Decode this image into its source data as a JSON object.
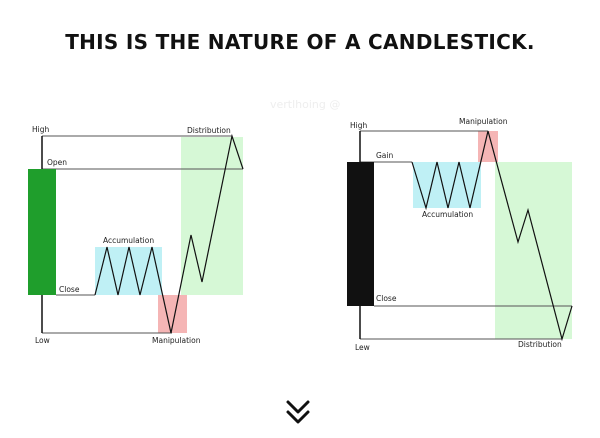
{
  "title": "THIS IS THE NATURE OF A CANDLESTICK.",
  "watermark": "vertlhoing @",
  "colors": {
    "bullish_candle": "#1f9e2c",
    "bearish_candle": "#111111",
    "accumulation": "#bff0f5",
    "manipulation": "#f5b5b5",
    "distribution": "#d6f8d6"
  },
  "left_diagram": {
    "high": "High",
    "open": "Open",
    "close": "Close",
    "low": "Low",
    "accumulation": "Accumulation",
    "manipulation": "Manipulation",
    "distribution": "Distribution"
  },
  "right_diagram": {
    "high": "High",
    "gain": "Gain",
    "close": "Close",
    "low": "Lew",
    "accumulation": "Accumulation",
    "manipulation": "Manipulation",
    "distribution": "Distribution"
  },
  "scroll_icon": "double-chevron-down-icon"
}
